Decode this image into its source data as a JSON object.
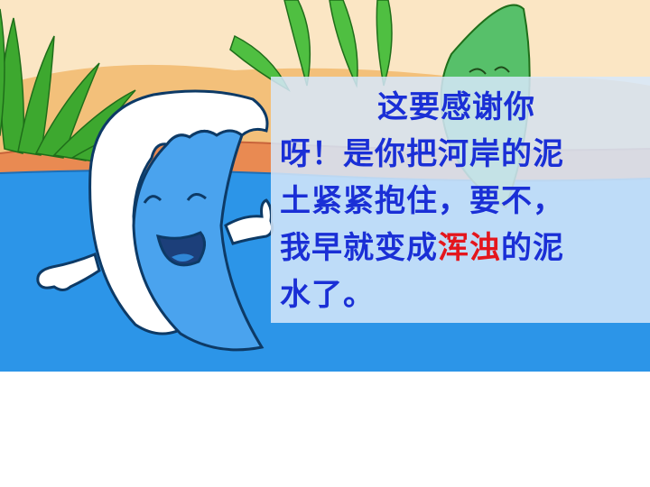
{
  "scene": {
    "character": "smiling water wave",
    "colors": {
      "sky": "#fbe6c4",
      "hill": "#f3c07a",
      "bank": "#e98a52",
      "water": "#2c95e8",
      "wave": "#4aa3ee",
      "leaf": "#3da82f"
    }
  },
  "dialogue": {
    "line1": "这要感谢你",
    "line2": "呀！是你把河岸的泥",
    "line3": "土紧紧抱住，要不，",
    "line4_before": "我早就变成",
    "line4_highlight": "浑浊",
    "line4_after": "的泥",
    "line5": "水了。",
    "text_color": "#1a2fd6",
    "highlight_color": "#e4161c"
  }
}
